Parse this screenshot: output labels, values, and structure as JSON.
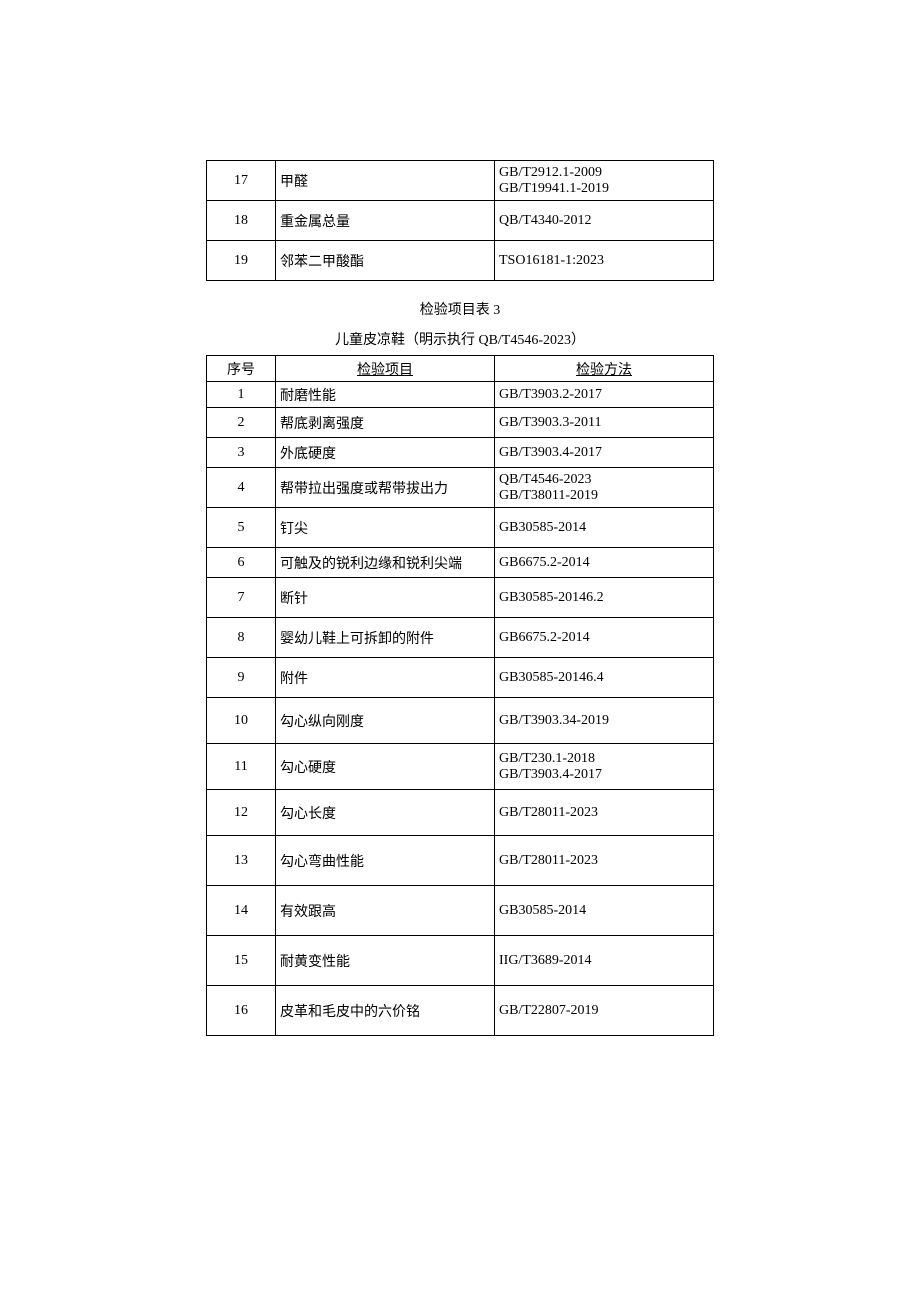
{
  "table1": {
    "col_widths": {
      "num": 60,
      "item": 210,
      "method": 210
    },
    "rows": [
      {
        "num": "17",
        "item": "甲醛",
        "method": "GB/T2912.1-2009\nGB/T19941.1-2019",
        "h": "h40"
      },
      {
        "num": "18",
        "item": "重金属总量",
        "method": "QB/T4340-2012",
        "h": "h40"
      },
      {
        "num": "19",
        "item": "邻苯二甲酸酯",
        "method": "TSO16181-1:2023",
        "h": "h40"
      }
    ]
  },
  "caption": "检验项目表 3",
  "subcaption": "儿童皮凉鞋（明示执行 QB/T4546-2023）",
  "table2": {
    "header": {
      "num": "序号",
      "item": "检验项目",
      "method": "检验方法"
    },
    "rows": [
      {
        "num": "1",
        "item": "耐磨性能",
        "method": "GB/T3903.2-2017",
        "h": "h26"
      },
      {
        "num": "2",
        "item": "帮底剥离强度",
        "method": "GB/T3903.3-2011",
        "h": "h30"
      },
      {
        "num": "3",
        "item": "外底硬度",
        "method": "GB/T3903.4-2017",
        "h": "h30"
      },
      {
        "num": "4",
        "item": "帮带拉出强度或帮带拔出力",
        "method": "QB/T4546-2023\nGB/T38011-2019",
        "h": "h40"
      },
      {
        "num": "5",
        "item": "钉尖",
        "method": "GB30585-2014",
        "h": "h40"
      },
      {
        "num": "6",
        "item": "可触及的锐利边缘和锐利尖端",
        "method": "GB6675.2-2014",
        "h": "h30"
      },
      {
        "num": "7",
        "item": "断针",
        "method": "GB30585-20146.2",
        "h": "h40"
      },
      {
        "num": "8",
        "item": "婴幼儿鞋上可拆卸的附件",
        "method": "GB6675.2-2014",
        "h": "h40"
      },
      {
        "num": "9",
        "item": "附件",
        "method": "GB30585-20146.4",
        "h": "h40"
      },
      {
        "num": "10",
        "item": "勾心纵向刚度",
        "method": "GB/T3903.34-2019",
        "h": "h46"
      },
      {
        "num": "11",
        "item": "勾心硬度",
        "method": "GB/T230.1-2018\nGB/T3903.4-2017",
        "h": "h46"
      },
      {
        "num": "12",
        "item": "勾心长度",
        "method": "GB/T28011-2023",
        "h": "h46"
      },
      {
        "num": "13",
        "item": "勾心弯曲性能",
        "method": "GB/T28011-2023",
        "h": "h50"
      },
      {
        "num": "14",
        "item": "有效跟高",
        "method": "GB30585-2014",
        "h": "h50"
      },
      {
        "num": "15",
        "item": "耐黄变性能",
        "method": "IIG/T3689-2014",
        "h": "h50"
      },
      {
        "num": "16",
        "item": "皮革和毛皮中的六价铭",
        "method": "GB/T22807-2019",
        "h": "h50"
      }
    ]
  }
}
